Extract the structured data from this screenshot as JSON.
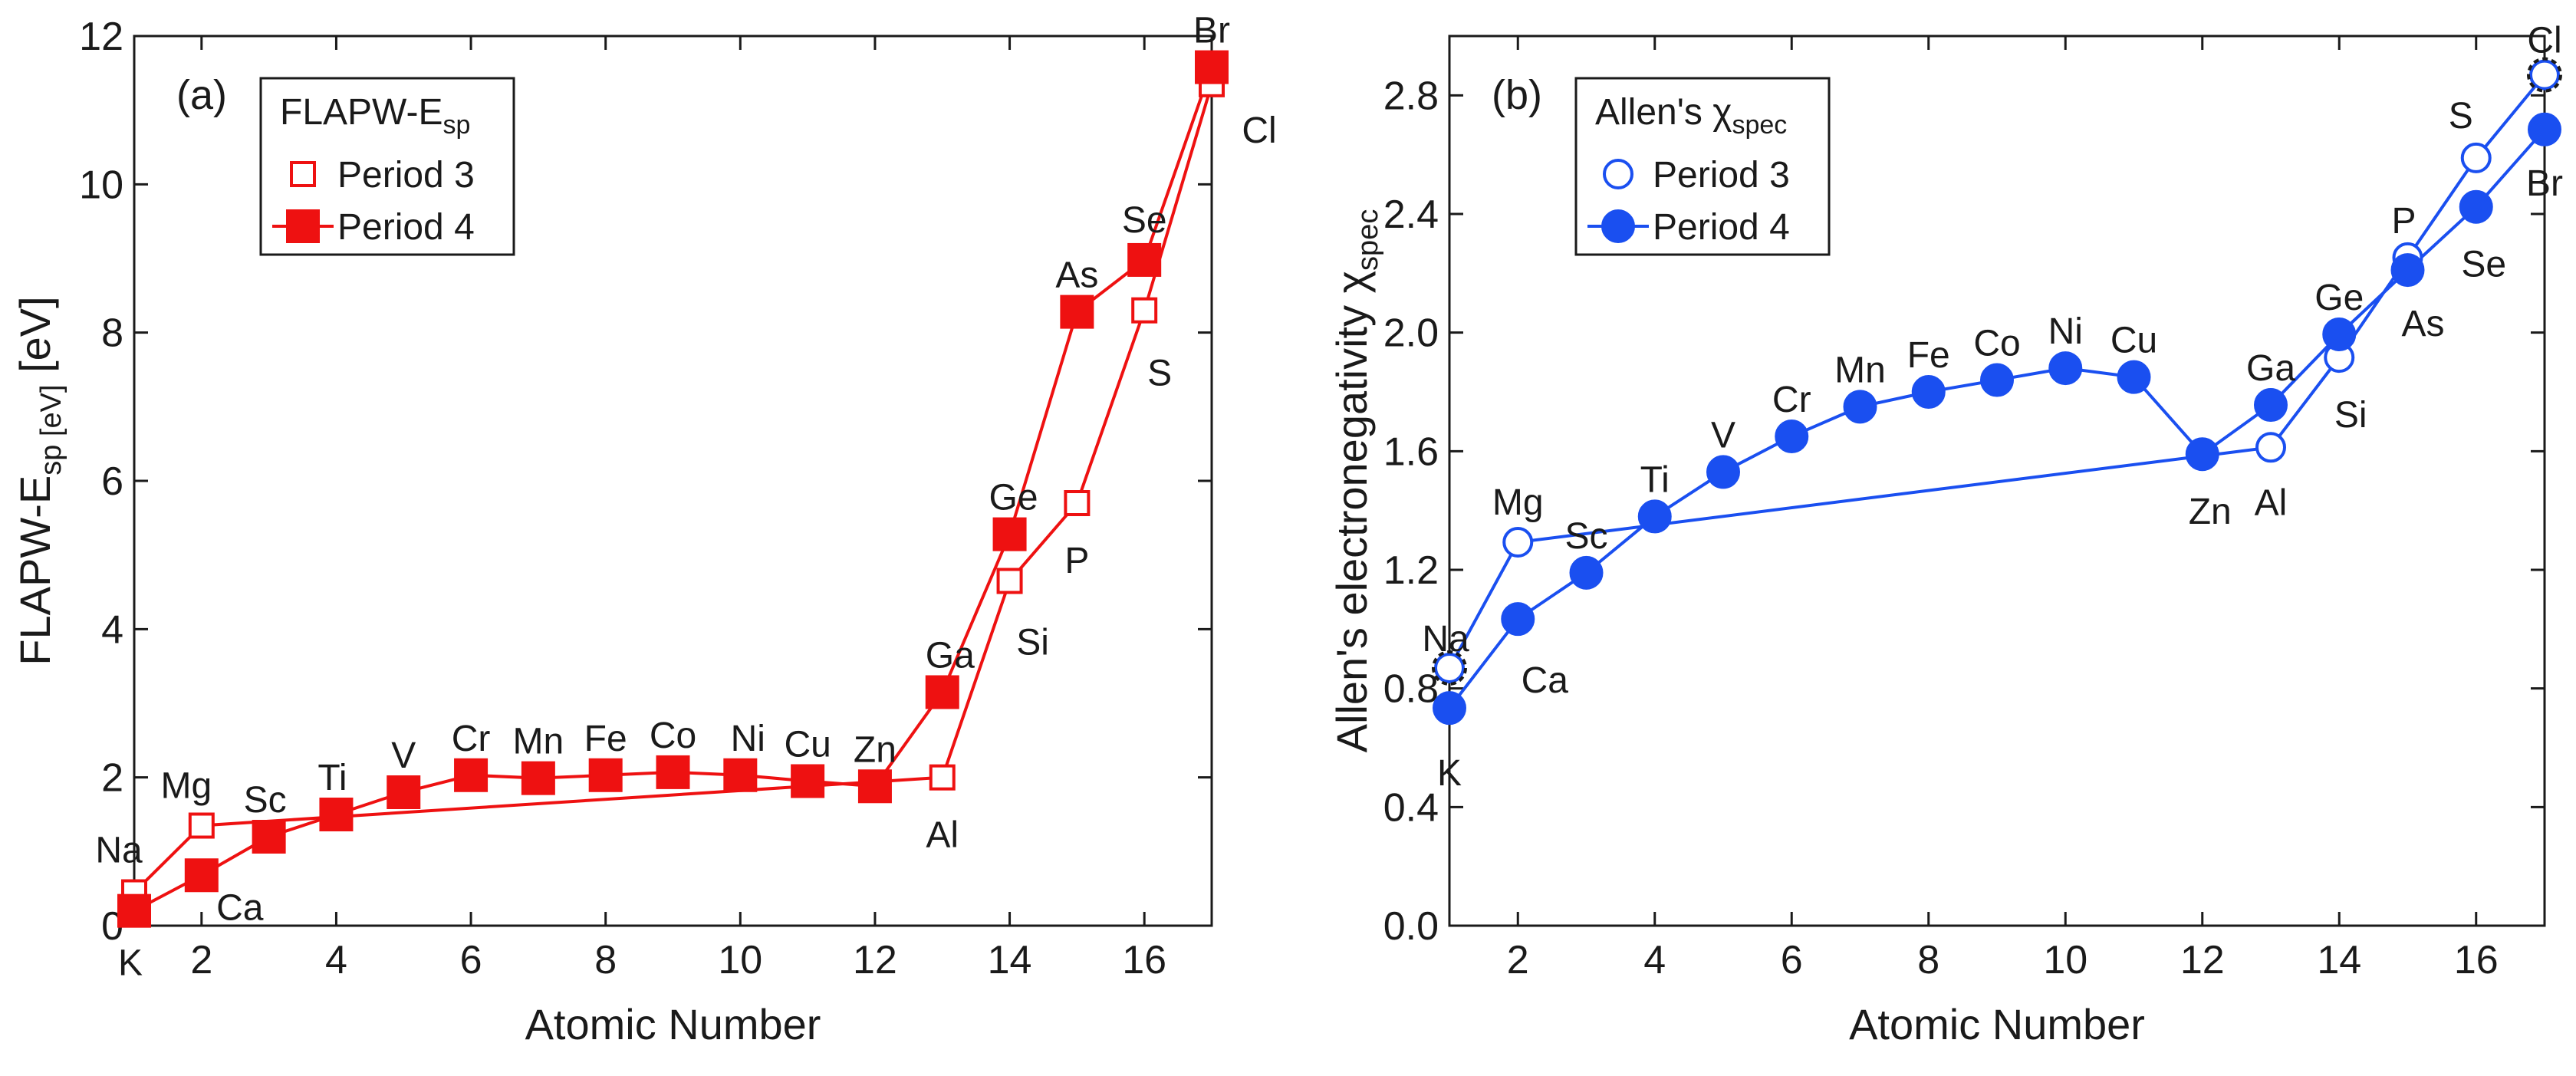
{
  "chart_data": [
    {
      "type": "line",
      "panel_label": "(a)",
      "xlabel": "Atomic Number",
      "ylabel": "FLAPW-E_sp [eV]",
      "xlim": [
        1,
        17
      ],
      "ylim": [
        0,
        12
      ],
      "x_ticks": [
        2,
        4,
        6,
        8,
        10,
        12,
        14,
        16
      ],
      "y_ticks": [
        0,
        2,
        4,
        6,
        8,
        10,
        12
      ],
      "legend": {
        "title": "FLAPW-E",
        "title_sub": "sp",
        "position": "top-left"
      },
      "series": [
        {
          "name": "Period 3",
          "color": "#ee1111",
          "marker": "open-square",
          "x": [
            1,
            2,
            13,
            14,
            15,
            16,
            17
          ],
          "values": [
            0.45,
            1.35,
            2.0,
            4.65,
            5.7,
            8.3,
            11.35
          ],
          "labels": [
            "Na",
            "Mg",
            "Al",
            "Si",
            "P",
            "S",
            "Cl"
          ]
        },
        {
          "name": "Period 4",
          "color": "#ee1111",
          "marker": "filled-square",
          "x": [
            1,
            2,
            3,
            4,
            5,
            6,
            7,
            8,
            9,
            10,
            11,
            12,
            13,
            14,
            15,
            16,
            17
          ],
          "values": [
            0.2,
            0.68,
            1.2,
            1.5,
            1.8,
            2.03,
            1.99,
            2.03,
            2.07,
            2.03,
            1.95,
            1.88,
            3.15,
            5.28,
            8.28,
            8.98,
            11.58
          ],
          "labels": [
            "K",
            "Ca",
            "Sc",
            "Ti",
            "V",
            "Cr",
            "Mn",
            "Fe",
            "Co",
            "Ni",
            "Cu",
            "Zn",
            "Ga",
            "Ge",
            "As",
            "Se",
            "Br"
          ]
        }
      ]
    },
    {
      "type": "line",
      "panel_label": "(b)",
      "xlabel": "Atomic Number",
      "ylabel": "Allen's electronegativity χ",
      "ylabel_sub": "spec",
      "xlim": [
        1,
        17
      ],
      "ylim": [
        0,
        3.0
      ],
      "x_ticks": [
        2,
        4,
        6,
        8,
        10,
        12,
        14,
        16
      ],
      "y_ticks": [
        "0.0",
        "0.4",
        "0.8",
        "1.2",
        "1.6",
        "2.0",
        "2.4",
        "2.8"
      ],
      "legend": {
        "title": "Allen's χ",
        "title_sub": "spec",
        "position": "top-left"
      },
      "series": [
        {
          "name": "Period 3",
          "color": "#1a4ff0",
          "marker": "open-circle",
          "x": [
            1,
            2,
            13,
            14,
            15,
            16,
            17
          ],
          "values": [
            0.869,
            1.293,
            1.613,
            1.916,
            2.253,
            2.589,
            2.869
          ],
          "labels": [
            "Na",
            "Mg",
            "Al",
            "Si",
            "P",
            "S",
            "Cl"
          ]
        },
        {
          "name": "Period 4",
          "color": "#1a4ff0",
          "marker": "filled-circle",
          "x": [
            1,
            2,
            3,
            4,
            5,
            6,
            7,
            8,
            9,
            10,
            11,
            12,
            13,
            14,
            15,
            16,
            17
          ],
          "values": [
            0.734,
            1.034,
            1.19,
            1.38,
            1.53,
            1.65,
            1.75,
            1.8,
            1.84,
            1.88,
            1.85,
            1.59,
            1.756,
            1.994,
            2.211,
            2.424,
            2.685
          ],
          "labels": [
            "K",
            "Ca",
            "Sc",
            "Ti",
            "V",
            "Cr",
            "Mn",
            "Fe",
            "Co",
            "Ni",
            "Cu",
            "Zn",
            "Ga",
            "Ge",
            "As",
            "Se",
            "Br"
          ]
        }
      ],
      "highlighted_points": [
        "Na",
        "Cl"
      ]
    }
  ]
}
